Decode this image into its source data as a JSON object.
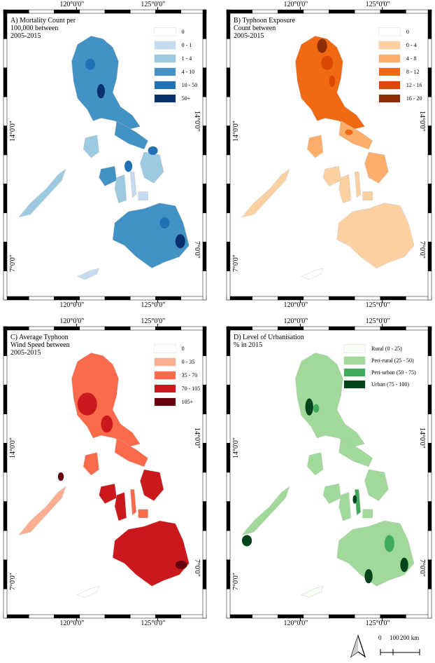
{
  "coords": {
    "lon_left": "120°0'0\"",
    "lon_right": "125°0'0\"",
    "lat_upper": "14°0'0\"",
    "lat_lower": "7°0'0\""
  },
  "panels": [
    {
      "key": "A",
      "title": "A) Mortality Count per\n100,000 between\n2005-2015",
      "legend": [
        {
          "label": "0",
          "color": "#ffffff"
        },
        {
          "label": "0 - 1",
          "color": "#c6dbef"
        },
        {
          "label": "1 - 4",
          "color": "#9ecae1"
        },
        {
          "label": "4 - 10",
          "color": "#4292c6"
        },
        {
          "label": "10 - 50",
          "color": "#2171b5"
        },
        {
          "label": "50+",
          "color": "#08306b"
        }
      ]
    },
    {
      "key": "B",
      "title": "B) Typhoon Exposure\nCount between\n2005-2015",
      "legend": [
        {
          "label": "0",
          "color": "#ffffff"
        },
        {
          "label": "0 - 4",
          "color": "#fdd0a2"
        },
        {
          "label": "4 - 8",
          "color": "#fdae6b"
        },
        {
          "label": "8 - 12",
          "color": "#f16913"
        },
        {
          "label": "12 - 16",
          "color": "#d94801"
        },
        {
          "label": "16 - 20",
          "color": "#8c2d04"
        }
      ]
    },
    {
      "key": "C",
      "title": "C) Average Typhoon\nWind Speed between\n2005-2015",
      "legend": [
        {
          "label": "0",
          "color": "#ffffff"
        },
        {
          "label": "0 - 35",
          "color": "#fcae91"
        },
        {
          "label": "35 - 70",
          "color": "#fb6a4a"
        },
        {
          "label": "70 - 105",
          "color": "#cb181d"
        },
        {
          "label": "105+",
          "color": "#67000d"
        }
      ]
    },
    {
      "key": "D",
      "title": "D) Level of Urbanisation\n% in 2015",
      "legend": [
        {
          "label": "Rural (0 - 25)",
          "color": "#f7fcf5"
        },
        {
          "label": "Peri-rural (25 - 50)",
          "color": "#a1d99b"
        },
        {
          "label": "Peri-urban (50 - 75)",
          "color": "#41ab5d"
        },
        {
          "label": "Urban (75 - 100)",
          "color": "#00441b"
        }
      ]
    }
  ],
  "scalebar": {
    "labels": [
      "0",
      "100",
      "200 km"
    ]
  },
  "north_arrow": {
    "icon": "north-arrow-icon"
  }
}
